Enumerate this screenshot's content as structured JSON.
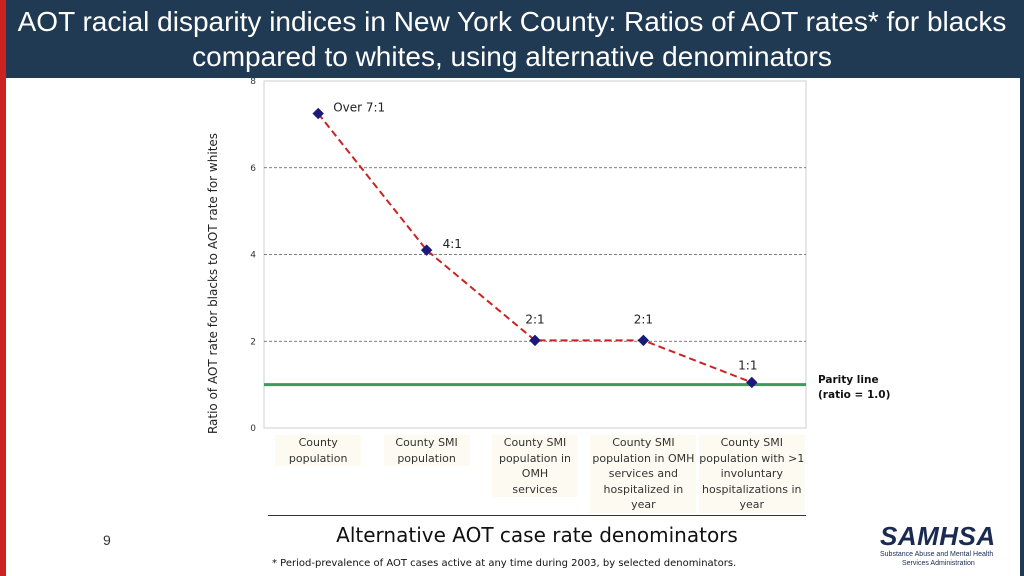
{
  "title": "AOT racial disparity indices in New York County: Ratios of AOT rates* for blacks compared to whites, using alternative denominators",
  "page_number": "9",
  "footnote": "* Period-prevalence of AOT cases active at any time during 2003, by selected denominators.",
  "parity_label": [
    "Parity line",
    "(ratio = 1.0)"
  ],
  "logo": {
    "word": "SAMHSA",
    "subtitle": [
      "Substance Abuse and Mental Health",
      "Services Administration"
    ]
  },
  "colors": {
    "header": "#1f3a52",
    "line": "#cc2222",
    "marker": "#1a1a7a",
    "parity": "#3c9a5c"
  },
  "chart_data": {
    "type": "line",
    "xlabel": "Alternative AOT case rate denominators",
    "ylabel": "Ratio of AOT rate for blacks to AOT rate for whites",
    "ylim": [
      0,
      8
    ],
    "yticks": [
      0,
      2,
      4,
      6,
      8
    ],
    "grid": "dashed horizontal at 2, 4, 6",
    "categories": [
      [
        "County",
        "population"
      ],
      [
        "County SMI",
        "population"
      ],
      [
        "County SMI",
        "population in",
        "OMH",
        "services"
      ],
      [
        "County SMI",
        "population in OMH",
        "services and",
        "hospitalized in",
        "year"
      ],
      [
        "County SMI",
        "population with >1",
        "involuntary",
        "hospitalizations in",
        "year"
      ]
    ],
    "series": [
      {
        "values": [
          7.25,
          4.1,
          2.02,
          2.02,
          1.05
        ],
        "labels": [
          "Over 7:1",
          "4:1",
          "2:1",
          "2:1",
          "1:1"
        ]
      }
    ],
    "parity_value": 1.0
  }
}
